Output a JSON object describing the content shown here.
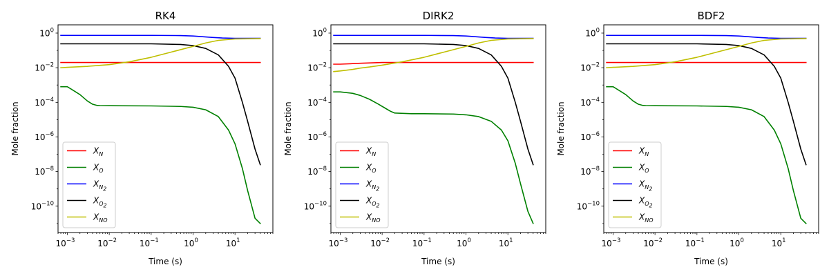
{
  "chart_data": [
    {
      "type": "line",
      "title": "RK4",
      "xlabel": "Time (s)",
      "ylabel": "Mole fraction",
      "xscale": "log",
      "yscale": "log",
      "xlim": [
        0.0006,
        80
      ],
      "ylim": [
        3e-12,
        3
      ],
      "legend_position": "lower-left",
      "grid": false,
      "series": [
        {
          "name": "X_N",
          "color": "#ff0000",
          "x": [
            0.0007,
            1,
            40
          ],
          "y": [
            0.02,
            0.02,
            0.02
          ]
        },
        {
          "name": "X_O",
          "color": "#008000",
          "x": [
            0.0007,
            0.001,
            0.002,
            0.003,
            0.004,
            0.005,
            0.006,
            0.01,
            0.1,
            0.5,
            1,
            2,
            4,
            7,
            10,
            15,
            20,
            30,
            40
          ],
          "y": [
            0.0008,
            0.0008,
            0.00028,
            0.00012,
            7.8e-05,
            6.7e-05,
            6.5e-05,
            6.4e-05,
            6.2e-05,
            5.8e-05,
            5.2e-05,
            3.7e-05,
            1.5e-05,
            2.5e-06,
            4e-07,
            1.5e-08,
            8e-10,
            2e-11,
            1e-11
          ]
        },
        {
          "name": "X_{N_2}",
          "color": "#0000ff",
          "x": [
            0.0007,
            0.1,
            0.5,
            1,
            3,
            5,
            10,
            40
          ],
          "y": [
            0.74,
            0.74,
            0.72,
            0.68,
            0.56,
            0.52,
            0.5,
            0.5
          ]
        },
        {
          "name": "X_{O_2}",
          "color": "#000000",
          "x": [
            0.0007,
            0.1,
            0.5,
            1,
            2,
            4,
            7,
            10,
            15,
            20,
            30,
            40
          ],
          "y": [
            0.24,
            0.24,
            0.22,
            0.19,
            0.13,
            0.055,
            0.012,
            0.0025,
            0.0001,
            8e-06,
            2e-07,
            2.5e-08
          ]
        },
        {
          "name": "X_{NO}",
          "color": "#bfbf00",
          "x": [
            0.0007,
            0.001,
            0.003,
            0.01,
            0.03,
            0.1,
            0.3,
            1,
            2,
            4,
            10,
            40
          ],
          "y": [
            0.01,
            0.0105,
            0.012,
            0.015,
            0.022,
            0.04,
            0.08,
            0.17,
            0.27,
            0.38,
            0.46,
            0.48
          ]
        }
      ]
    },
    {
      "type": "line",
      "title": "DIRK2",
      "xlabel": "Time (s)",
      "ylabel": "Mole fraction",
      "xscale": "log",
      "yscale": "log",
      "xlim": [
        0.0006,
        80
      ],
      "ylim": [
        3e-12,
        3
      ],
      "legend_position": "lower-left",
      "grid": false,
      "series": [
        {
          "name": "X_N",
          "color": "#ff0000",
          "x": [
            0.0007,
            0.001,
            0.003,
            0.01,
            1,
            40
          ],
          "y": [
            0.016,
            0.016,
            0.018,
            0.02,
            0.02,
            0.02
          ]
        },
        {
          "name": "X_O",
          "color": "#008000",
          "x": [
            0.0007,
            0.001,
            0.002,
            0.003,
            0.005,
            0.008,
            0.012,
            0.016,
            0.02,
            0.05,
            0.1,
            0.5,
            1,
            2,
            4,
            7,
            10,
            15,
            20,
            30,
            40
          ],
          "y": [
            0.0004,
            0.0004,
            0.00033,
            0.00025,
            0.00015,
            8e-05,
            4.5e-05,
            3e-05,
            2.4e-05,
            2.2e-05,
            2.2e-05,
            2.1e-05,
            1.9e-05,
            1.5e-05,
            8e-06,
            2.5e-06,
            6e-07,
            3e-08,
            2e-09,
            5e-11,
            1e-11
          ]
        },
        {
          "name": "X_{N_2}",
          "color": "#0000ff",
          "x": [
            0.0007,
            0.1,
            0.5,
            1,
            3,
            5,
            10,
            40
          ],
          "y": [
            0.74,
            0.74,
            0.72,
            0.68,
            0.56,
            0.52,
            0.5,
            0.5
          ]
        },
        {
          "name": "X_{O_2}",
          "color": "#000000",
          "x": [
            0.0007,
            0.1,
            0.5,
            1,
            2,
            4,
            7,
            10,
            15,
            20,
            30,
            40
          ],
          "y": [
            0.24,
            0.24,
            0.22,
            0.19,
            0.13,
            0.055,
            0.012,
            0.0025,
            0.0001,
            8e-06,
            2e-07,
            2.5e-08
          ]
        },
        {
          "name": "X_{NO}",
          "color": "#bfbf00",
          "x": [
            0.0007,
            0.001,
            0.002,
            0.003,
            0.005,
            0.01,
            0.03,
            0.1,
            0.3,
            1,
            2,
            4,
            10,
            40
          ],
          "y": [
            0.006,
            0.0065,
            0.008,
            0.0095,
            0.011,
            0.014,
            0.022,
            0.04,
            0.08,
            0.17,
            0.27,
            0.38,
            0.46,
            0.48
          ]
        }
      ]
    },
    {
      "type": "line",
      "title": "BDF2",
      "xlabel": "Time (s)",
      "ylabel": "Mole fraction",
      "xscale": "log",
      "yscale": "log",
      "xlim": [
        0.0006,
        80
      ],
      "ylim": [
        3e-12,
        3
      ],
      "legend_position": "lower-left",
      "grid": false,
      "series": [
        {
          "name": "X_N",
          "color": "#ff0000",
          "x": [
            0.0007,
            1,
            40
          ],
          "y": [
            0.02,
            0.02,
            0.02
          ]
        },
        {
          "name": "X_O",
          "color": "#008000",
          "x": [
            0.0007,
            0.001,
            0.002,
            0.003,
            0.004,
            0.005,
            0.006,
            0.01,
            0.1,
            0.5,
            1,
            2,
            4,
            7,
            10,
            15,
            20,
            30,
            40
          ],
          "y": [
            0.0008,
            0.0008,
            0.00028,
            0.00012,
            7.8e-05,
            6.7e-05,
            6.5e-05,
            6.4e-05,
            6.2e-05,
            5.8e-05,
            5.2e-05,
            3.7e-05,
            1.5e-05,
            2.5e-06,
            4e-07,
            1.5e-08,
            8e-10,
            2e-11,
            1e-11
          ]
        },
        {
          "name": "X_{N_2}",
          "color": "#0000ff",
          "x": [
            0.0007,
            0.1,
            0.5,
            1,
            3,
            5,
            10,
            40
          ],
          "y": [
            0.74,
            0.74,
            0.72,
            0.68,
            0.56,
            0.52,
            0.5,
            0.5
          ]
        },
        {
          "name": "X_{O_2}",
          "color": "#000000",
          "x": [
            0.0007,
            0.1,
            0.5,
            1,
            2,
            4,
            7,
            10,
            15,
            20,
            30,
            40
          ],
          "y": [
            0.24,
            0.24,
            0.22,
            0.19,
            0.13,
            0.055,
            0.012,
            0.0025,
            0.0001,
            8e-06,
            2e-07,
            2.5e-08
          ]
        },
        {
          "name": "X_{NO}",
          "color": "#bfbf00",
          "x": [
            0.0007,
            0.001,
            0.003,
            0.01,
            0.03,
            0.1,
            0.3,
            1,
            2,
            4,
            10,
            40
          ],
          "y": [
            0.01,
            0.0105,
            0.012,
            0.015,
            0.022,
            0.04,
            0.08,
            0.17,
            0.27,
            0.38,
            0.46,
            0.48
          ]
        }
      ]
    }
  ],
  "ticks": {
    "x": [
      {
        "base": "10",
        "exp": "−3",
        "value": 0.001
      },
      {
        "base": "10",
        "exp": "−2",
        "value": 0.01
      },
      {
        "base": "10",
        "exp": "−1",
        "value": 0.1
      },
      {
        "base": "10",
        "exp": "0",
        "value": 1
      },
      {
        "base": "10",
        "exp": "1",
        "value": 10
      }
    ],
    "y": [
      {
        "base": "10",
        "exp": "0",
        "value": 1
      },
      {
        "base": "10",
        "exp": "−2",
        "value": 0.01
      },
      {
        "base": "10",
        "exp": "−4",
        "value": 0.0001
      },
      {
        "base": "10",
        "exp": "−6",
        "value": 1e-06
      },
      {
        "base": "10",
        "exp": "−8",
        "value": 1e-08
      },
      {
        "base": "10",
        "exp": "−10",
        "value": 1e-10
      }
    ]
  },
  "legend": [
    {
      "symbol": "X",
      "sub": "N",
      "subsub": ""
    },
    {
      "symbol": "X",
      "sub": "O",
      "subsub": ""
    },
    {
      "symbol": "X",
      "sub": "N",
      "subsub": "2"
    },
    {
      "symbol": "X",
      "sub": "O",
      "subsub": "2"
    },
    {
      "symbol": "X",
      "sub": "NO",
      "subsub": ""
    }
  ]
}
